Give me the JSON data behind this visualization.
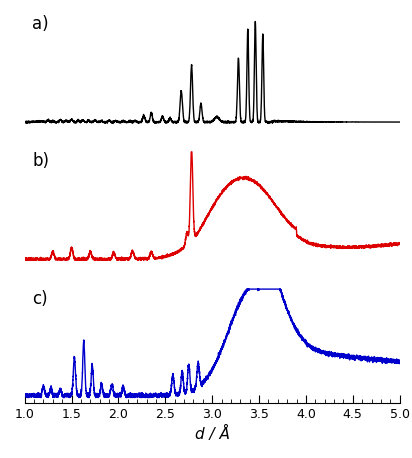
{
  "xlabel": "d / Å",
  "xlim": [
    1.0,
    5.0
  ],
  "xticks": [
    1.0,
    1.5,
    2.0,
    2.5,
    3.0,
    3.5,
    4.0,
    4.5,
    5.0
  ],
  "panels": [
    "a)",
    "b)",
    "c)"
  ],
  "colors": [
    "#000000",
    "#dd0000",
    "#0000cc"
  ],
  "background": "#ffffff",
  "figsize": [
    4.12,
    4.58
  ],
  "dpi": 100
}
